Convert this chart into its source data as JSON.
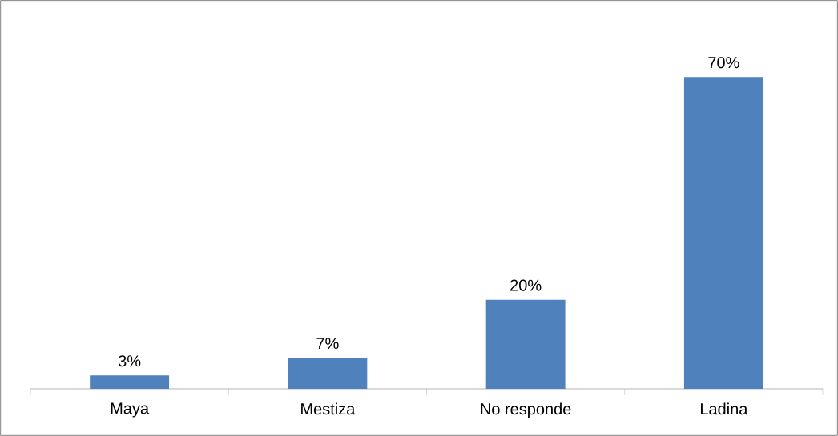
{
  "chart_data": {
    "type": "bar",
    "categories": [
      "Maya",
      "Mestiza",
      "No responde",
      "Ladina"
    ],
    "values": [
      3,
      7,
      20,
      70
    ],
    "color": "#4f81bd",
    "value_labels": [
      "3%",
      "7%",
      "20%",
      "70%"
    ]
  }
}
